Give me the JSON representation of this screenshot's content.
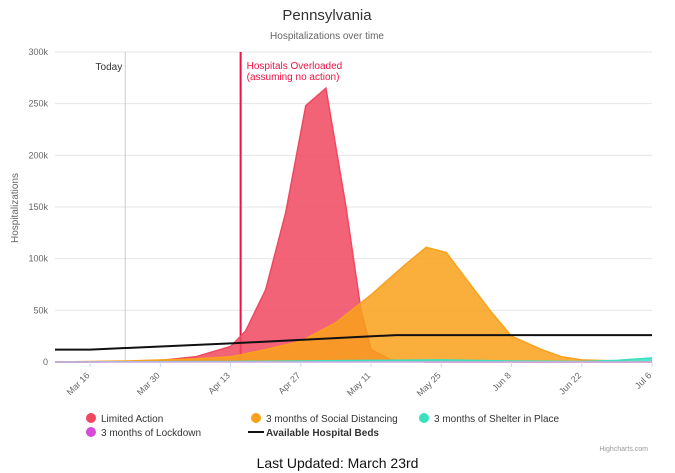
{
  "chart_data": {
    "type": "area",
    "title": "Pennsylvania",
    "subtitle": "Hospitalizations over time",
    "ylabel": "Hospitalizations",
    "xlabel": "",
    "ylim": [
      0,
      300000
    ],
    "y_ticks": [
      0,
      50000,
      100000,
      150000,
      200000,
      250000,
      300000
    ],
    "y_tick_labels": [
      "0",
      "50k",
      "100k",
      "150k",
      "200k",
      "250k",
      "300k"
    ],
    "x_range": [
      "2020-03-09",
      "2020-07-06"
    ],
    "x_ticks": [
      "2020-03-16",
      "2020-03-30",
      "2020-04-13",
      "2020-04-27",
      "2020-05-11",
      "2020-05-25",
      "2020-06-08",
      "2020-06-22",
      "2020-07-06"
    ],
    "x_tick_labels": [
      "Mar 16",
      "Mar 30",
      "Apr 13",
      "Apr 27",
      "May 11",
      "May 25",
      "Jun 8",
      "Jun 22",
      "Jul 6"
    ],
    "grid": true,
    "legend_position": "bottom",
    "plot_lines": [
      {
        "date": "2020-03-23",
        "label": "Today",
        "color": "#cccccc"
      },
      {
        "date": "2020-04-15",
        "label_lines": [
          "Hospitals Overloaded",
          "(assuming no action)"
        ],
        "color": "#ee1144"
      }
    ],
    "series": [
      {
        "name": "Limited Action",
        "kind": "area",
        "color": "#f04860",
        "points": [
          [
            "2020-03-09",
            0
          ],
          [
            "2020-03-16",
            0
          ],
          [
            "2020-03-23",
            500
          ],
          [
            "2020-03-30",
            1500
          ],
          [
            "2020-04-06",
            5000
          ],
          [
            "2020-04-13",
            15000
          ],
          [
            "2020-04-16",
            30000
          ],
          [
            "2020-04-20",
            70000
          ],
          [
            "2020-04-24",
            145000
          ],
          [
            "2020-04-28",
            248000
          ],
          [
            "2020-05-02",
            265000
          ],
          [
            "2020-05-06",
            150000
          ],
          [
            "2020-05-09",
            50000
          ],
          [
            "2020-05-11",
            12000
          ],
          [
            "2020-05-15",
            2000
          ],
          [
            "2020-05-22",
            0
          ],
          [
            "2020-07-06",
            0
          ]
        ]
      },
      {
        "name": "3 months of Social Distancing",
        "kind": "area",
        "color": "#f9a11b",
        "points": [
          [
            "2020-03-09",
            0
          ],
          [
            "2020-03-23",
            1000
          ],
          [
            "2020-04-06",
            3000
          ],
          [
            "2020-04-13",
            5000
          ],
          [
            "2020-04-20",
            12000
          ],
          [
            "2020-04-27",
            20000
          ],
          [
            "2020-05-04",
            38000
          ],
          [
            "2020-05-11",
            65000
          ],
          [
            "2020-05-18",
            95000
          ],
          [
            "2020-05-22",
            111000
          ],
          [
            "2020-05-26",
            106000
          ],
          [
            "2020-05-30",
            80000
          ],
          [
            "2020-06-04",
            48000
          ],
          [
            "2020-06-08",
            25000
          ],
          [
            "2020-06-14",
            12000
          ],
          [
            "2020-06-18",
            5000
          ],
          [
            "2020-06-22",
            2000
          ],
          [
            "2020-07-06",
            0
          ]
        ]
      },
      {
        "name": "3 months of Shelter in Place",
        "kind": "area",
        "color": "#3be0c0",
        "points": [
          [
            "2020-03-09",
            0
          ],
          [
            "2020-04-13",
            500
          ],
          [
            "2020-05-11",
            1500
          ],
          [
            "2020-05-25",
            2000
          ],
          [
            "2020-06-08",
            1000
          ],
          [
            "2020-06-22",
            500
          ],
          [
            "2020-06-29",
            1500
          ],
          [
            "2020-07-06",
            4000
          ]
        ]
      },
      {
        "name": "3 months of Lockdown",
        "kind": "area",
        "color": "#d94bd6",
        "points": [
          [
            "2020-03-09",
            0
          ],
          [
            "2020-07-06",
            0
          ]
        ]
      },
      {
        "name": "Available Hospital Beds",
        "kind": "line",
        "color": "#111111",
        "points": [
          [
            "2020-03-09",
            12000
          ],
          [
            "2020-03-16",
            12000
          ],
          [
            "2020-04-13",
            18000
          ],
          [
            "2020-05-16",
            26000
          ],
          [
            "2020-07-06",
            26000
          ]
        ]
      }
    ],
    "credits": "Highcharts.com"
  },
  "footer": {
    "last_updated": "Last Updated: March 23rd"
  }
}
